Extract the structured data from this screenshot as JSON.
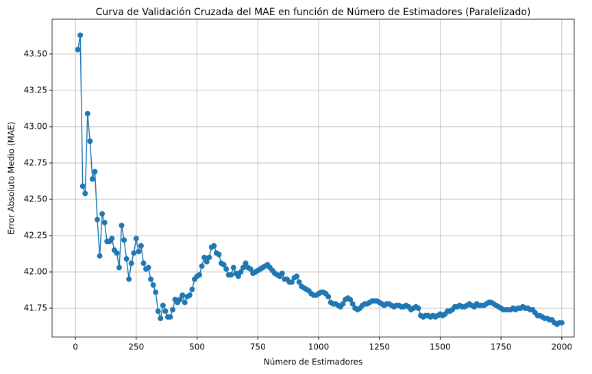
{
  "chart_data": {
    "type": "line",
    "title": "Curva de Validación Cruzada del MAE en función de Número de Estimadores (Paralelizado)",
    "x_label": "Número de Estimadores",
    "y_label": "Error Absoluto Medio (MAE)",
    "color": "#1f77b4",
    "grid": true,
    "markers": true,
    "xlim": [
      -96,
      2051
    ],
    "ylim": [
      41.552,
      43.74
    ],
    "xticks": [
      0,
      250,
      500,
      750,
      1000,
      1250,
      1500,
      1750,
      2000
    ],
    "yticks": [
      41.75,
      {
        "value": 42,
        "label": "42.00"
      },
      42.25,
      {
        "value": 42.5,
        "label": "42.50"
      },
      42.75,
      {
        "value": 43,
        "label": "43.00"
      },
      43.25,
      {
        "value": 43.5,
        "label": "43.50"
      }
    ],
    "x": [
      10,
      20,
      30,
      40,
      50,
      60,
      70,
      80,
      90,
      100,
      110,
      120,
      130,
      140,
      150,
      160,
      170,
      180,
      190,
      200,
      210,
      220,
      230,
      240,
      250,
      260,
      270,
      280,
      290,
      300,
      310,
      320,
      330,
      340,
      350,
      360,
      370,
      380,
      390,
      400,
      410,
      420,
      430,
      440,
      450,
      460,
      470,
      480,
      490,
      500,
      510,
      520,
      530,
      540,
      550,
      560,
      570,
      580,
      590,
      600,
      610,
      620,
      630,
      640,
      650,
      660,
      670,
      680,
      690,
      700,
      710,
      720,
      730,
      740,
      750,
      760,
      770,
      780,
      790,
      800,
      810,
      820,
      830,
      840,
      850,
      860,
      870,
      880,
      890,
      900,
      910,
      920,
      930,
      940,
      950,
      960,
      970,
      980,
      990,
      1000,
      1010,
      1020,
      1030,
      1040,
      1050,
      1060,
      1070,
      1080,
      1090,
      1100,
      1110,
      1120,
      1130,
      1140,
      1150,
      1160,
      1170,
      1180,
      1190,
      1200,
      1210,
      1220,
      1230,
      1240,
      1250,
      1260,
      1270,
      1280,
      1290,
      1300,
      1310,
      1320,
      1330,
      1340,
      1350,
      1360,
      1370,
      1380,
      1390,
      1400,
      1410,
      1420,
      1430,
      1440,
      1450,
      1460,
      1470,
      1480,
      1490,
      1500,
      1510,
      1520,
      1530,
      1540,
      1550,
      1560,
      1570,
      1580,
      1590,
      1600,
      1610,
      1620,
      1630,
      1640,
      1650,
      1660,
      1670,
      1680,
      1690,
      1700,
      1710,
      1720,
      1730,
      1740,
      1750,
      1760,
      1770,
      1780,
      1790,
      1800,
      1810,
      1820,
      1830,
      1840,
      1850,
      1860,
      1870,
      1880,
      1890,
      1900,
      1910,
      1920,
      1930,
      1940,
      1950,
      1960,
      1970,
      1980,
      1990,
      2000
    ],
    "values": [
      43.53,
      43.63,
      42.59,
      42.54,
      43.09,
      42.9,
      42.64,
      42.69,
      42.36,
      42.11,
      42.4,
      42.34,
      42.21,
      42.21,
      42.23,
      42.15,
      42.13,
      42.03,
      42.32,
      42.22,
      42.09,
      41.95,
      42.06,
      42.13,
      42.23,
      42.14,
      42.18,
      42.06,
      42.02,
      42.03,
      41.95,
      41.91,
      41.86,
      41.73,
      41.68,
      41.77,
      41.73,
      41.69,
      41.69,
      41.74,
      41.81,
      41.79,
      41.81,
      41.84,
      41.79,
      41.83,
      41.84,
      41.88,
      41.95,
      41.97,
      41.98,
      42.04,
      42.1,
      42.07,
      42.1,
      42.17,
      42.18,
      42.13,
      42.12,
      42.06,
      42.05,
      42.02,
      41.98,
      41.98,
      42.03,
      41.99,
      41.97,
      42.0,
      42.03,
      42.06,
      42.03,
      42.02,
      41.99,
      42.0,
      42.01,
      42.02,
      42.03,
      42.04,
      42.05,
      42.03,
      42.01,
      41.99,
      41.98,
      41.97,
      41.99,
      41.95,
      41.95,
      41.93,
      41.93,
      41.96,
      41.97,
      41.93,
      41.9,
      41.89,
      41.88,
      41.87,
      41.85,
      41.84,
      41.84,
      41.85,
      41.86,
      41.86,
      41.85,
      41.83,
      41.79,
      41.78,
      41.78,
      41.77,
      41.76,
      41.78,
      41.81,
      41.82,
      41.81,
      41.78,
      41.75,
      41.74,
      41.75,
      41.77,
      41.78,
      41.78,
      41.79,
      41.8,
      41.8,
      41.8,
      41.79,
      41.78,
      41.77,
      41.78,
      41.78,
      41.77,
      41.76,
      41.77,
      41.77,
      41.76,
      41.76,
      41.77,
      41.76,
      41.74,
      41.75,
      41.76,
      41.75,
      41.7,
      41.69,
      41.7,
      41.7,
      41.69,
      41.7,
      41.69,
      41.7,
      41.71,
      41.7,
      41.71,
      41.73,
      41.73,
      41.74,
      41.76,
      41.76,
      41.77,
      41.76,
      41.76,
      41.77,
      41.78,
      41.77,
      41.76,
      41.78,
      41.77,
      41.77,
      41.77,
      41.78,
      41.79,
      41.79,
      41.78,
      41.77,
      41.76,
      41.75,
      41.74,
      41.74,
      41.74,
      41.74,
      41.75,
      41.74,
      41.75,
      41.75,
      41.76,
      41.75,
      41.75,
      41.74,
      41.74,
      41.72,
      41.7,
      41.7,
      41.69,
      41.68,
      41.68,
      41.67,
      41.67,
      41.65,
      41.64,
      41.65,
      41.65
    ]
  }
}
